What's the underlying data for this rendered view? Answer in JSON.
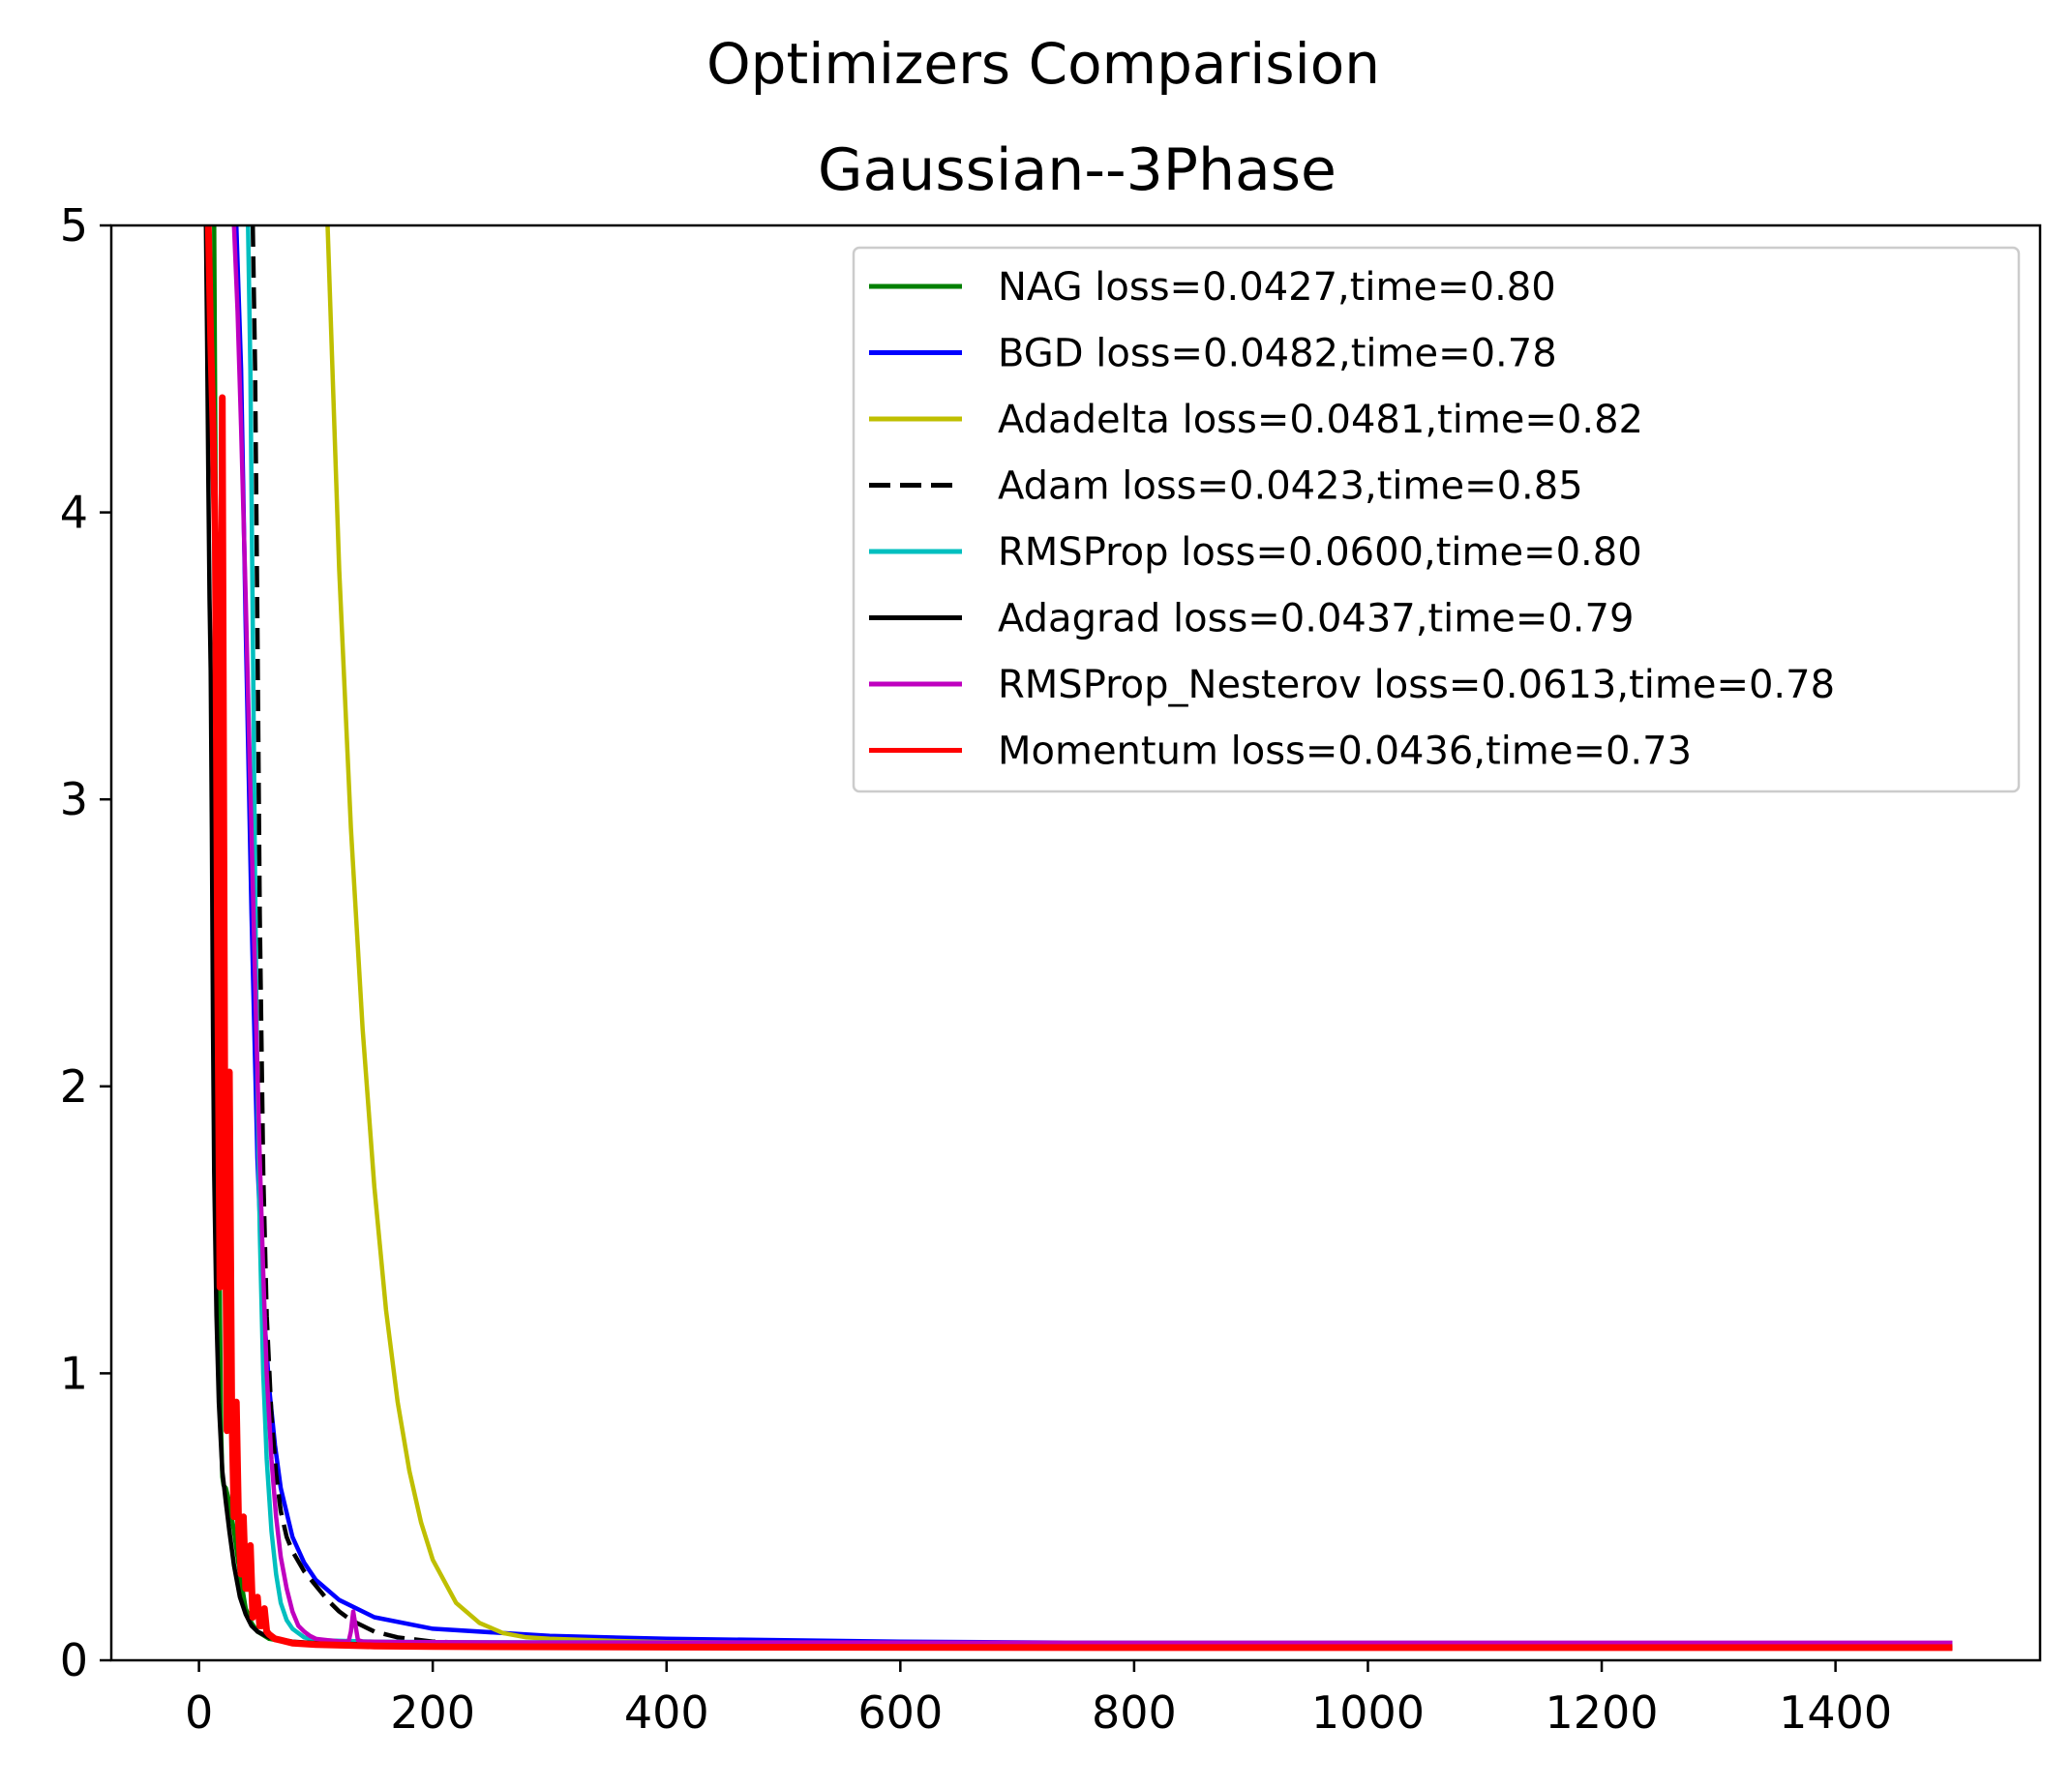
{
  "chart_data": {
    "type": "line",
    "suptitle": "Optimizers Comparision",
    "title": "Gaussian--3Phase",
    "xlabel": "",
    "ylabel": "",
    "xlim": [
      -75,
      1575
    ],
    "ylim": [
      0,
      5
    ],
    "xticks": [
      0,
      200,
      400,
      600,
      800,
      1000,
      1200,
      1400
    ],
    "xtick_labels": [
      "0",
      "200",
      "400",
      "600",
      "800",
      "1000",
      "1200",
      "1400"
    ],
    "yticks": [
      0,
      1,
      2,
      3,
      4,
      5
    ],
    "ytick_labels": [
      "0",
      "1",
      "2",
      "3",
      "4",
      "5"
    ],
    "grid": false,
    "legend_position": "upper-right",
    "series": [
      {
        "name": "NAG   loss=0.0427,time=0.80",
        "color": "#008000",
        "dash": "solid",
        "x": [
          13,
          15,
          17,
          18,
          19,
          20,
          21,
          23,
          26,
          30,
          35,
          40,
          45,
          50,
          60,
          80,
          120,
          200,
          400,
          800,
          1200,
          1500
        ],
        "y": [
          5.0,
          3.5,
          2.0,
          1.2,
          0.8,
          0.64,
          0.61,
          0.6,
          0.55,
          0.45,
          0.3,
          0.18,
          0.13,
          0.1,
          0.075,
          0.06,
          0.055,
          0.05,
          0.047,
          0.045,
          0.043,
          0.043
        ]
      },
      {
        "name": "BGD   loss=0.0482,time=0.78",
        "color": "#0000ff",
        "dash": "solid",
        "x": [
          32,
          36,
          40,
          45,
          50,
          55,
          60,
          65,
          70,
          80,
          90,
          100,
          120,
          150,
          200,
          300,
          400,
          600,
          800,
          1000,
          1200,
          1500
        ],
        "y": [
          5.0,
          4.5,
          3.6,
          2.6,
          1.75,
          1.25,
          0.95,
          0.75,
          0.6,
          0.43,
          0.34,
          0.28,
          0.21,
          0.15,
          0.11,
          0.085,
          0.075,
          0.065,
          0.06,
          0.055,
          0.052,
          0.05
        ]
      },
      {
        "name": "Adadelta   loss=0.0481,time=0.82",
        "color": "#bfbf00",
        "dash": "solid",
        "x": [
          110,
          115,
          120,
          130,
          140,
          150,
          160,
          170,
          180,
          190,
          200,
          220,
          240,
          260,
          280,
          300,
          350,
          400,
          600,
          800,
          1200,
          1500
        ],
        "y": [
          5.0,
          4.4,
          3.8,
          2.9,
          2.2,
          1.65,
          1.22,
          0.9,
          0.66,
          0.48,
          0.35,
          0.2,
          0.13,
          0.095,
          0.08,
          0.075,
          0.068,
          0.063,
          0.058,
          0.055,
          0.051,
          0.05
        ]
      },
      {
        "name": "Adam   loss=0.0423,time=0.85",
        "color": "#000000",
        "dash": "dashed",
        "x": [
          46,
          48,
          50,
          52,
          55,
          58,
          62,
          66,
          70,
          75,
          80,
          90,
          100,
          110,
          120,
          130,
          140,
          150,
          160,
          170,
          180,
          190,
          200,
          250,
          300,
          400,
          600,
          1000,
          1500
        ],
        "y": [
          5.0,
          4.5,
          3.6,
          2.6,
          1.7,
          1.2,
          0.85,
          0.65,
          0.52,
          0.43,
          0.38,
          0.31,
          0.26,
          0.21,
          0.17,
          0.14,
          0.12,
          0.1,
          0.09,
          0.08,
          0.075,
          0.07,
          0.065,
          0.058,
          0.053,
          0.05,
          0.046,
          0.044,
          0.042
        ]
      },
      {
        "name": "RMSProp   loss=0.0600,time=0.80",
        "color": "#00bfbf",
        "dash": "solid",
        "x": [
          42,
          44,
          46,
          48,
          50,
          52,
          55,
          58,
          62,
          66,
          70,
          75,
          80,
          90,
          100,
          150,
          200,
          400,
          800,
          1200,
          1500
        ],
        "y": [
          5.0,
          4.5,
          3.6,
          2.7,
          2.0,
          1.5,
          1.0,
          0.7,
          0.45,
          0.3,
          0.2,
          0.14,
          0.11,
          0.08,
          0.07,
          0.065,
          0.063,
          0.062,
          0.061,
          0.06,
          0.06
        ]
      },
      {
        "name": "Adagrad   loss=0.0437,time=0.79",
        "color": "#000000",
        "dash": "solid",
        "x": [
          6,
          7,
          8,
          9,
          10,
          11,
          12,
          13,
          15,
          17,
          20,
          23,
          26,
          30,
          35,
          40,
          45,
          50,
          60,
          80,
          100,
          150,
          200,
          400,
          800,
          1200,
          1500
        ],
        "y": [
          5.0,
          4.6,
          4.1,
          3.7,
          3.45,
          2.9,
          2.2,
          1.7,
          1.2,
          0.9,
          0.66,
          0.55,
          0.45,
          0.33,
          0.22,
          0.16,
          0.12,
          0.1,
          0.08,
          0.065,
          0.06,
          0.055,
          0.052,
          0.048,
          0.045,
          0.044,
          0.044
        ]
      },
      {
        "name": "RMSProp_Nesterov   loss=0.0613,time=0.78",
        "color": "#bf00bf",
        "dash": "solid",
        "x": [
          30,
          33,
          36,
          40,
          43,
          46,
          49,
          52,
          55,
          58,
          62,
          66,
          70,
          75,
          80,
          85,
          90,
          95,
          100,
          110,
          120,
          128,
          130,
          132,
          134,
          136,
          140,
          160,
          200,
          300,
          500,
          800,
          1200,
          1500
        ],
        "y": [
          5.0,
          4.7,
          4.3,
          3.7,
          3.2,
          2.7,
          2.2,
          1.75,
          1.35,
          1.0,
          0.7,
          0.5,
          0.36,
          0.25,
          0.17,
          0.12,
          0.1,
          0.085,
          0.075,
          0.07,
          0.066,
          0.065,
          0.1,
          0.17,
          0.12,
          0.07,
          0.065,
          0.064,
          0.063,
          0.062,
          0.062,
          0.061,
          0.061,
          0.061
        ]
      },
      {
        "name": "Momentum   loss=0.0436,time=0.73",
        "color": "#ff0000",
        "dash": "solid",
        "x": [
          8,
          10,
          12,
          14,
          16,
          18,
          20,
          22,
          24,
          26,
          28,
          30,
          32,
          34,
          36,
          38,
          40,
          42,
          44,
          46,
          48,
          50,
          52,
          54,
          56,
          58,
          60,
          65,
          70,
          80,
          100,
          150,
          200,
          400,
          800,
          1200,
          1500
        ],
        "y": [
          5.0,
          4.6,
          4.3,
          3.9,
          2.4,
          1.3,
          4.4,
          2.0,
          0.8,
          2.05,
          0.9,
          0.5,
          0.9,
          0.45,
          0.3,
          0.5,
          0.25,
          0.25,
          0.4,
          0.15,
          0.2,
          0.22,
          0.12,
          0.12,
          0.18,
          0.1,
          0.09,
          0.075,
          0.07,
          0.06,
          0.055,
          0.05,
          0.048,
          0.046,
          0.044,
          0.044,
          0.044
        ]
      }
    ]
  }
}
